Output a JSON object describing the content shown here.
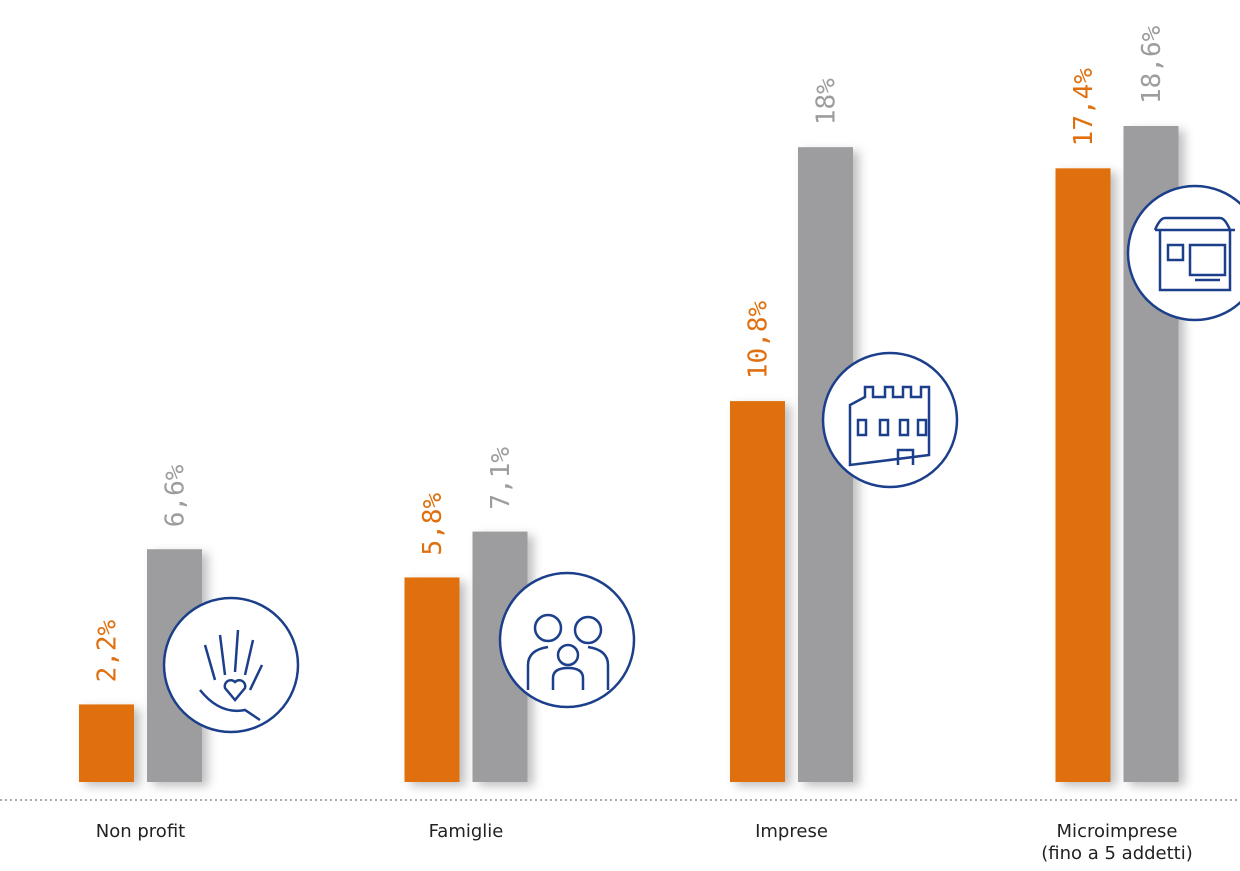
{
  "chart_data": {
    "type": "bar",
    "categories": [
      "Non profit",
      "Famiglie",
      "Imprese",
      "Microimprese\n(fino a 5 addetti)"
    ],
    "series": [
      {
        "color": "#e0700f",
        "values": [
          2.2,
          5.8,
          10.8,
          17.4
        ],
        "value_labels": [
          "2,2%",
          "5,8%",
          "10,8%",
          "17,4%"
        ]
      },
      {
        "color": "#9d9d9f",
        "values": [
          6.6,
          7.1,
          18,
          18.6
        ],
        "value_labels": [
          "6,6%",
          "7,1%",
          "18%",
          "18,6%"
        ]
      }
    ]
  }
}
